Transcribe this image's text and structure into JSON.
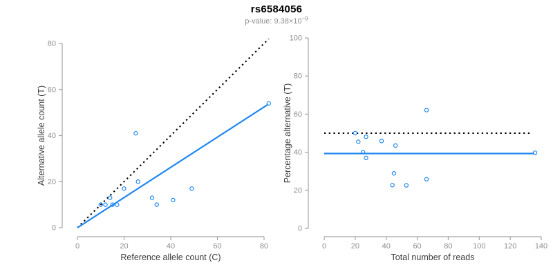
{
  "title": "rs6584056",
  "subtitle": {
    "prefix": "p-value: 9.38×10",
    "exponent": "−9"
  },
  "colors": {
    "accent_blue": "#1e87f0",
    "dotted_black": "#000000",
    "axis_line": "#a3a3a3",
    "tick_label": "#8c8c8c",
    "axis_title": "#3c3c3c"
  },
  "chart_data": [
    {
      "id": "allele-count-scatter",
      "type": "scatter",
      "xlabel": "Reference allele count (C)",
      "ylabel": "Alternative allele count (T)",
      "xticks": [
        0,
        20,
        40,
        60,
        80
      ],
      "yticks": [
        0,
        20,
        40,
        60,
        80
      ],
      "xlim": [
        0,
        82
      ],
      "ylim": [
        0,
        82
      ],
      "points": [
        [
          10,
          10
        ],
        [
          12,
          10
        ],
        [
          14,
          13
        ],
        [
          15,
          10
        ],
        [
          17,
          10
        ],
        [
          20,
          17
        ],
        [
          25,
          41
        ],
        [
          26,
          20
        ],
        [
          32,
          13
        ],
        [
          34,
          10
        ],
        [
          41,
          12
        ],
        [
          49,
          17
        ],
        [
          82,
          54
        ]
      ],
      "lines": [
        {
          "name": "identity-line",
          "style": "dotted",
          "color": "#000000",
          "x1": 0,
          "y1": 0,
          "x2": 82,
          "y2": 82
        },
        {
          "name": "regression-line",
          "style": "solid",
          "color": "#1e87f0",
          "x1": 0,
          "y1": 0,
          "x2": 81.5,
          "y2": 53.4
        }
      ]
    },
    {
      "id": "percentage-vs-reads-scatter",
      "type": "scatter",
      "xlabel": "Total number of reads",
      "ylabel": "Percentage alternative (T)",
      "xticks": [
        0,
        20,
        40,
        60,
        80,
        100,
        120,
        140
      ],
      "yticks": [
        0,
        20,
        40,
        60,
        80,
        100
      ],
      "xlim": [
        0,
        140
      ],
      "ylim": [
        0,
        100
      ],
      "points": [
        [
          20,
          50
        ],
        [
          22,
          45.5
        ],
        [
          25,
          40
        ],
        [
          27,
          48.1
        ],
        [
          27,
          37
        ],
        [
          37,
          45.9
        ],
        [
          44,
          22.7
        ],
        [
          45,
          28.9
        ],
        [
          46,
          43.5
        ],
        [
          53,
          22.6
        ],
        [
          66,
          25.8
        ],
        [
          66,
          62.1
        ],
        [
          136,
          39.7
        ]
      ],
      "lines": [
        {
          "name": "expected-50pct-line",
          "style": "dotted",
          "color": "#000000",
          "x1": 0,
          "y1": 50,
          "x2": 133,
          "y2": 50
        },
        {
          "name": "mean-percentage-line",
          "style": "solid",
          "color": "#1e87f0",
          "x1": 0,
          "y1": 39.3,
          "x2": 135.5,
          "y2": 39.3
        }
      ]
    }
  ]
}
